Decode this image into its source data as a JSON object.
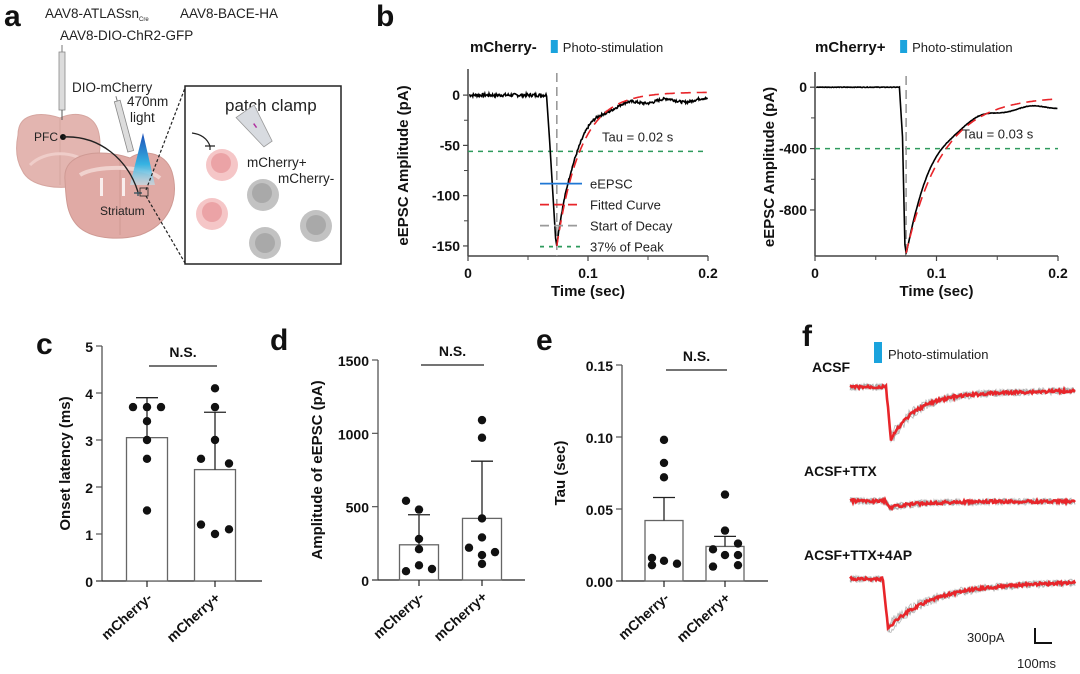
{
  "panels": {
    "a": {
      "letter": "a",
      "vectors": {
        "line1_a": "AAV8-ATLASsn",
        "line1_a_sub": "Cre",
        "line1_b": "AAV8-BACE-HA",
        "line2": "AAV8-DIO-ChR2-GFP"
      },
      "labels": {
        "dio_mcherry": "DIO-mCherry",
        "light_1": "470nm",
        "light_2": "light",
        "pfc": "PFC",
        "striatum": "Striatum",
        "patch_clamp": "patch clamp",
        "mcherry_pos": "mCherry+",
        "mcherry_neg": "mCherry-"
      },
      "colors": {
        "brain": "#e3b5b0",
        "brain_dark": "#d29d98",
        "light_beam": "#3aa8d8",
        "cell_pink": "#f2b7b9",
        "cell_gray": "#bdbdbd"
      }
    },
    "b": {
      "letter": "b"
    },
    "c": {
      "letter": "c"
    },
    "d": {
      "letter": "d"
    },
    "e": {
      "letter": "e"
    },
    "f": {
      "letter": "f"
    }
  },
  "chart_data": [
    {
      "id": "b-left",
      "type": "line",
      "title": "mCherry-",
      "stim_label": "Photo-stimulation",
      "xlabel": "Time (sec)",
      "ylabel": "eEPSC Amplitude (pA)",
      "xlim": [
        0,
        0.2
      ],
      "ylim": [
        -160,
        20
      ],
      "xticks": [
        0,
        0.1,
        0.2
      ],
      "xtick_labels": [
        "0",
        "0.1",
        "0.2"
      ],
      "yticks": [
        0,
        -50,
        -100,
        -150
      ],
      "ytick_labels": [
        "0",
        "-50",
        "-100",
        "-150"
      ],
      "stim_time": 0.074,
      "peak": -150,
      "threshold_37": -56,
      "annotation": "Tau = 0.02 s",
      "tau": 0.02,
      "baseline_end": 0.066,
      "final_value": -5,
      "fit_final": 3,
      "legend": [
        {
          "label": "eEPSC",
          "color": "#1f77d4",
          "style": "solid"
        },
        {
          "label": "Fitted Curve",
          "color": "#e8252a",
          "style": "dashed"
        },
        {
          "label": "Start of Decay",
          "color": "#9a9a9a",
          "style": "dashed"
        },
        {
          "label": "37% of Peak",
          "color": "#2e9a5c",
          "style": "dotted"
        }
      ],
      "legend_position": "center-right"
    },
    {
      "id": "b-right",
      "type": "line",
      "title": "mCherry+",
      "stim_label": "Photo-stimulation",
      "xlabel": "Time (sec)",
      "ylabel": "eEPSC Amplitude (pA)",
      "xlim": [
        0,
        0.2
      ],
      "ylim": [
        -1100,
        60
      ],
      "xticks": [
        0,
        0.1,
        0.2
      ],
      "xtick_labels": [
        "0",
        "0.1",
        "0.2"
      ],
      "yticks": [
        0,
        -400,
        -800
      ],
      "ytick_labels": [
        "0",
        "-400",
        "-800"
      ],
      "stim_time": 0.075,
      "peak": -1080,
      "threshold_37": -400,
      "annotation": "Tau = 0.03 s",
      "tau": 0.03,
      "baseline_end": 0.07,
      "final_value": -120,
      "fit_final": -60
    },
    {
      "id": "c",
      "type": "bar",
      "categories": [
        "mCherry-",
        "mCherry+"
      ],
      "means": [
        3.05,
        2.37
      ],
      "errors": [
        0.85,
        1.22
      ],
      "points": [
        [
          3.7,
          3.7,
          3.7,
          3.4,
          3.0,
          2.6,
          1.5
        ],
        [
          4.1,
          3.7,
          3.0,
          2.6,
          2.5,
          1.2,
          1.0,
          1.1
        ]
      ],
      "ylabel": "Onset latency (ms)",
      "ylim": [
        0,
        5
      ],
      "yticks": [
        0,
        1,
        2,
        3,
        4,
        5
      ],
      "ytick_labels": [
        "0",
        "1",
        "2",
        "3",
        "4",
        "5"
      ],
      "significance": "N.S."
    },
    {
      "id": "d",
      "type": "bar",
      "categories": [
        "mCherry-",
        "mCherry+"
      ],
      "means": [
        240,
        420
      ],
      "errors": [
        205,
        390
      ],
      "points": [
        [
          540,
          480,
          280,
          210,
          100,
          60,
          75
        ],
        [
          1090,
          970,
          420,
          290,
          220,
          170,
          110,
          190
        ]
      ],
      "ylabel": "Amplitude of eEPSC (pA)",
      "ylim": [
        0,
        1500
      ],
      "yticks": [
        0,
        500,
        1000,
        1500
      ],
      "ytick_labels": [
        "0",
        "500",
        "1000",
        "1500"
      ],
      "significance": "N.S."
    },
    {
      "id": "e",
      "type": "bar",
      "categories": [
        "mCherry-",
        "mCherry+"
      ],
      "means": [
        0.042,
        0.024
      ],
      "errors": [
        0.016,
        0.007
      ],
      "points": [
        [
          0.098,
          0.082,
          0.072,
          0.016,
          0.011,
          0.014,
          0.012
        ],
        [
          0.06,
          0.035,
          0.022,
          0.018,
          0.026,
          0.018,
          0.01,
          0.011
        ]
      ],
      "ylabel": "Tau (sec)",
      "ylim": [
        0,
        0.15
      ],
      "yticks": [
        0,
        0.05,
        0.1,
        0.15
      ],
      "ytick_labels": [
        "0.00",
        "0.05",
        "0.10",
        "0.15"
      ],
      "significance": "N.S."
    },
    {
      "id": "f",
      "type": "line",
      "stim_label": "Photo-stimulation",
      "traces": [
        {
          "label": "ACSF",
          "peak_pA": -480,
          "tau": 0.03
        },
        {
          "label": "ACSF+TTX",
          "peak_pA": -60,
          "tau": 0.03
        },
        {
          "label": "ACSF+TTX+4AP",
          "peak_pA": -450,
          "tau": 0.05
        }
      ],
      "scalebar": {
        "y_label": "300pA",
        "x_label": "100ms",
        "y_value_pA": 300,
        "x_value_ms": 100
      },
      "colors": {
        "mean": "#e8252a",
        "individual": "#9a9a9a"
      }
    }
  ]
}
